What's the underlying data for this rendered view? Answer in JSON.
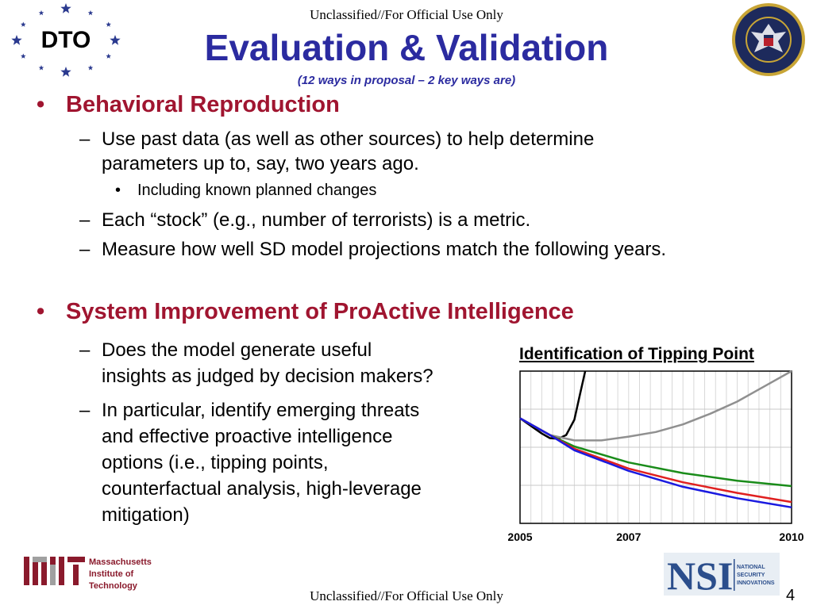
{
  "header": {
    "classification": "Unclassified//For Official Use Only",
    "title": "Evaluation & Validation",
    "subtitle": "(12 ways in proposal – 2 key ways are)"
  },
  "logos": {
    "dto": "DTO",
    "seal_text": "OFFICE OF THE DIRECTOR OF NATIONAL INTELLIGENCE • UNITED STATES OF AMERICA",
    "mit_lines": [
      "Massachusetts",
      "Institute of",
      "Technology"
    ],
    "nsi": "NSI",
    "nsi_sub": [
      "NATIONAL",
      "SECURITY",
      "INNOVATIONS"
    ]
  },
  "content": {
    "section1": {
      "heading": "Behavioral Reproduction",
      "items": [
        {
          "line1": "Use past data (as well as other sources) to help determine",
          "line2": "parameters up to, say, two years ago."
        },
        {
          "sub": "Including known planned changes"
        },
        {
          "line1": "Each “stock” (e.g., number of terrorists) is a metric."
        },
        {
          "line1": "Measure how well SD model projections match the following years."
        }
      ]
    },
    "section2": {
      "heading": "System Improvement of ProActive Intelligence",
      "items": [
        {
          "lines": [
            "Does the model generate useful",
            "insights as judged by decision makers?"
          ]
        },
        {
          "lines": [
            "In particular, identify emerging threats",
            "and effective proactive intelligence",
            "options (i.e., tipping points,",
            "counterfactual analysis, high-leverage",
            "mitigation)"
          ]
        }
      ]
    }
  },
  "footer": {
    "classification": "Unclassified//For Official Use Only",
    "page_number": "4"
  },
  "chart_data": {
    "type": "line",
    "title": "Identification of Tipping Point",
    "xlabel": "",
    "ylabel": "",
    "x_ticks": [
      "2005",
      "2007",
      "2010"
    ],
    "xlim": [
      2005,
      2010
    ],
    "ylim": [
      0,
      1
    ],
    "grid": true,
    "series": [
      {
        "color": "#000000",
        "x": [
          2005,
          2005.4,
          2005.55,
          2005.7,
          2005.85,
          2006.0,
          2006.1,
          2006.2
        ],
        "y": [
          0.69,
          0.59,
          0.56,
          0.555,
          0.58,
          0.68,
          0.84,
          1.0
        ]
      },
      {
        "color": "#909090",
        "x": [
          2005,
          2005.55,
          2006.0,
          2006.5,
          2007.0,
          2007.5,
          2008.0,
          2008.5,
          2009.0,
          2009.5,
          2010.0
        ],
        "y": [
          0.69,
          0.58,
          0.545,
          0.545,
          0.57,
          0.6,
          0.65,
          0.72,
          0.8,
          0.9,
          1.0
        ]
      },
      {
        "color": "#1a8c1a",
        "x": [
          2005,
          2005.55,
          2006.0,
          2007.0,
          2008.0,
          2009.0,
          2010.0
        ],
        "y": [
          0.69,
          0.58,
          0.505,
          0.4,
          0.33,
          0.28,
          0.245
        ]
      },
      {
        "color": "#e02020",
        "x": [
          2005,
          2005.55,
          2006.0,
          2007.0,
          2008.0,
          2009.0,
          2010.0
        ],
        "y": [
          0.69,
          0.58,
          0.49,
          0.36,
          0.27,
          0.2,
          0.14
        ]
      },
      {
        "color": "#1a1ae0",
        "x": [
          2005,
          2005.55,
          2006.0,
          2007.0,
          2008.0,
          2009.0,
          2010.0
        ],
        "y": [
          0.69,
          0.58,
          0.48,
          0.345,
          0.24,
          0.165,
          0.105
        ]
      }
    ]
  }
}
